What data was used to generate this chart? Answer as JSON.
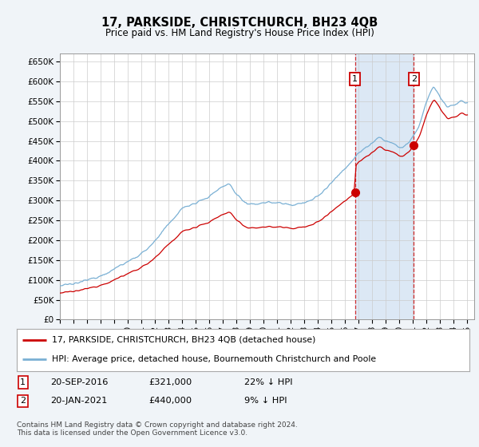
{
  "title": "17, PARKSIDE, CHRISTCHURCH, BH23 4QB",
  "subtitle": "Price paid vs. HM Land Registry's House Price Index (HPI)",
  "legend_label_red": "17, PARKSIDE, CHRISTCHURCH, BH23 4QB (detached house)",
  "legend_label_blue": "HPI: Average price, detached house, Bournemouth Christchurch and Poole",
  "annotation1_date": "20-SEP-2016",
  "annotation1_price": "£321,000",
  "annotation1_hpi": "22% ↓ HPI",
  "annotation2_date": "20-JAN-2021",
  "annotation2_price": "£440,000",
  "annotation2_hpi": "9% ↓ HPI",
  "footnote": "Contains HM Land Registry data © Crown copyright and database right 2024.\nThis data is licensed under the Open Government Licence v3.0.",
  "sale1_year": 2016.72,
  "sale1_price": 321000,
  "sale2_year": 2021.05,
  "sale2_price": 440000,
  "ylim_min": 0,
  "ylim_max": 670000,
  "xlim_min": 1995,
  "xlim_max": 2025.5,
  "background_color": "#f0f4f8",
  "plot_bg_color": "#ffffff",
  "shade_color": "#dce8f5",
  "grid_color": "#cccccc",
  "red_line_color": "#cc0000",
  "blue_line_color": "#7ab0d4"
}
